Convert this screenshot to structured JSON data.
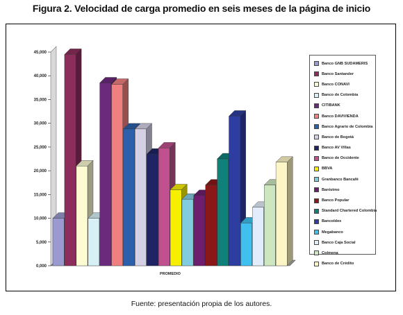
{
  "figure": {
    "title": "Figura 2. Velocidad de carga promedio en seis meses de la página de inicio",
    "source": "Fuente: presentación propia de los autores."
  },
  "chart_data": {
    "type": "bar",
    "categories": [
      "PROMEDIO"
    ],
    "ylim": [
      0,
      45
    ],
    "yticks": [
      0,
      5,
      10,
      15,
      20,
      25,
      30,
      35,
      40,
      45
    ],
    "ytick_labels": [
      "0,000",
      "5,000",
      "10,000",
      "15,000",
      "20,000",
      "25,000",
      "30,000",
      "35,000",
      "40,000",
      "45,000"
    ],
    "grid": false,
    "legend_position": "right",
    "series": [
      {
        "name": "Banco GNB SUDAMERIS",
        "value": 10.0,
        "color": "#9a9ad0"
      },
      {
        "name": "Banco Santander",
        "value": 44.5,
        "color": "#8c2d5c"
      },
      {
        "name": "Banco CONAVI",
        "value": 21.0,
        "color": "#fdfbd2"
      },
      {
        "name": "Banco de Colombia",
        "value": 10.0,
        "color": "#d6f0f6"
      },
      {
        "name": "CITIBANK",
        "value": 38.5,
        "color": "#6c2a7c"
      },
      {
        "name": "Banco DAVIVIENDA",
        "value": 38.2,
        "color": "#f08080"
      },
      {
        "name": "Banco Agrario de Colombia",
        "value": 28.8,
        "color": "#2c60aa"
      },
      {
        "name": "Banco de Bogotá",
        "value": 28.8,
        "color": "#d4d0e6"
      },
      {
        "name": "Banco AV Villas",
        "value": 23.5,
        "color": "#1e2464"
      },
      {
        "name": "Banco de Occidente",
        "value": 24.8,
        "color": "#c0508e"
      },
      {
        "name": "BBVA",
        "value": 16.0,
        "color": "#f6f000"
      },
      {
        "name": "Granbanco Bancafé",
        "value": 14.0,
        "color": "#82cce0"
      },
      {
        "name": "Banistmo",
        "value": 14.8,
        "color": "#6e1e6e"
      },
      {
        "name": "Banco Popular",
        "value": 17.0,
        "color": "#8a1818"
      },
      {
        "name": "Standard Chartered Colombia",
        "value": 22.5,
        "color": "#10807a"
      },
      {
        "name": "Bancoldex",
        "value": 31.5,
        "color": "#2e3ea0"
      },
      {
        "name": "Megabanco",
        "value": 9.0,
        "color": "#40c0ee"
      },
      {
        "name": "Banco Caja Social",
        "value": 12.3,
        "color": "#e2ecfa"
      },
      {
        "name": "Colmena",
        "value": 17.0,
        "color": "#cce6c0"
      },
      {
        "name": "Banco de Crédito",
        "value": 21.8,
        "color": "#fcf6c6"
      }
    ]
  }
}
